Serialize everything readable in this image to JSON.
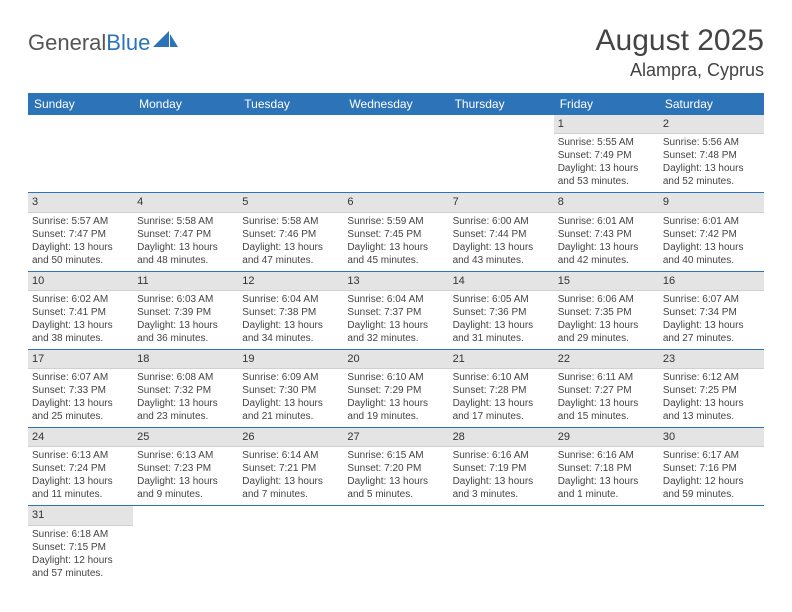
{
  "brand": {
    "general": "General",
    "blue": "Blue"
  },
  "title": "August 2025",
  "location": "Alampra, Cyprus",
  "colors": {
    "header_bg": "#2d73b8",
    "header_text": "#ffffff",
    "daynum_bg": "#e4e4e4",
    "row_border": "#2d73b8",
    "text": "#444444"
  },
  "weekdays": [
    "Sunday",
    "Monday",
    "Tuesday",
    "Wednesday",
    "Thursday",
    "Friday",
    "Saturday"
  ],
  "weeks": [
    [
      null,
      null,
      null,
      null,
      null,
      {
        "n": "1",
        "sunrise": "5:55 AM",
        "sunset": "7:49 PM",
        "daylight": "13 hours and 53 minutes."
      },
      {
        "n": "2",
        "sunrise": "5:56 AM",
        "sunset": "7:48 PM",
        "daylight": "13 hours and 52 minutes."
      }
    ],
    [
      {
        "n": "3",
        "sunrise": "5:57 AM",
        "sunset": "7:47 PM",
        "daylight": "13 hours and 50 minutes."
      },
      {
        "n": "4",
        "sunrise": "5:58 AM",
        "sunset": "7:47 PM",
        "daylight": "13 hours and 48 minutes."
      },
      {
        "n": "5",
        "sunrise": "5:58 AM",
        "sunset": "7:46 PM",
        "daylight": "13 hours and 47 minutes."
      },
      {
        "n": "6",
        "sunrise": "5:59 AM",
        "sunset": "7:45 PM",
        "daylight": "13 hours and 45 minutes."
      },
      {
        "n": "7",
        "sunrise": "6:00 AM",
        "sunset": "7:44 PM",
        "daylight": "13 hours and 43 minutes."
      },
      {
        "n": "8",
        "sunrise": "6:01 AM",
        "sunset": "7:43 PM",
        "daylight": "13 hours and 42 minutes."
      },
      {
        "n": "9",
        "sunrise": "6:01 AM",
        "sunset": "7:42 PM",
        "daylight": "13 hours and 40 minutes."
      }
    ],
    [
      {
        "n": "10",
        "sunrise": "6:02 AM",
        "sunset": "7:41 PM",
        "daylight": "13 hours and 38 minutes."
      },
      {
        "n": "11",
        "sunrise": "6:03 AM",
        "sunset": "7:39 PM",
        "daylight": "13 hours and 36 minutes."
      },
      {
        "n": "12",
        "sunrise": "6:04 AM",
        "sunset": "7:38 PM",
        "daylight": "13 hours and 34 minutes."
      },
      {
        "n": "13",
        "sunrise": "6:04 AM",
        "sunset": "7:37 PM",
        "daylight": "13 hours and 32 minutes."
      },
      {
        "n": "14",
        "sunrise": "6:05 AM",
        "sunset": "7:36 PM",
        "daylight": "13 hours and 31 minutes."
      },
      {
        "n": "15",
        "sunrise": "6:06 AM",
        "sunset": "7:35 PM",
        "daylight": "13 hours and 29 minutes."
      },
      {
        "n": "16",
        "sunrise": "6:07 AM",
        "sunset": "7:34 PM",
        "daylight": "13 hours and 27 minutes."
      }
    ],
    [
      {
        "n": "17",
        "sunrise": "6:07 AM",
        "sunset": "7:33 PM",
        "daylight": "13 hours and 25 minutes."
      },
      {
        "n": "18",
        "sunrise": "6:08 AM",
        "sunset": "7:32 PM",
        "daylight": "13 hours and 23 minutes."
      },
      {
        "n": "19",
        "sunrise": "6:09 AM",
        "sunset": "7:30 PM",
        "daylight": "13 hours and 21 minutes."
      },
      {
        "n": "20",
        "sunrise": "6:10 AM",
        "sunset": "7:29 PM",
        "daylight": "13 hours and 19 minutes."
      },
      {
        "n": "21",
        "sunrise": "6:10 AM",
        "sunset": "7:28 PM",
        "daylight": "13 hours and 17 minutes."
      },
      {
        "n": "22",
        "sunrise": "6:11 AM",
        "sunset": "7:27 PM",
        "daylight": "13 hours and 15 minutes."
      },
      {
        "n": "23",
        "sunrise": "6:12 AM",
        "sunset": "7:25 PM",
        "daylight": "13 hours and 13 minutes."
      }
    ],
    [
      {
        "n": "24",
        "sunrise": "6:13 AM",
        "sunset": "7:24 PM",
        "daylight": "13 hours and 11 minutes."
      },
      {
        "n": "25",
        "sunrise": "6:13 AM",
        "sunset": "7:23 PM",
        "daylight": "13 hours and 9 minutes."
      },
      {
        "n": "26",
        "sunrise": "6:14 AM",
        "sunset": "7:21 PM",
        "daylight": "13 hours and 7 minutes."
      },
      {
        "n": "27",
        "sunrise": "6:15 AM",
        "sunset": "7:20 PM",
        "daylight": "13 hours and 5 minutes."
      },
      {
        "n": "28",
        "sunrise": "6:16 AM",
        "sunset": "7:19 PM",
        "daylight": "13 hours and 3 minutes."
      },
      {
        "n": "29",
        "sunrise": "6:16 AM",
        "sunset": "7:18 PM",
        "daylight": "13 hours and 1 minute."
      },
      {
        "n": "30",
        "sunrise": "6:17 AM",
        "sunset": "7:16 PM",
        "daylight": "12 hours and 59 minutes."
      }
    ],
    [
      {
        "n": "31",
        "sunrise": "6:18 AM",
        "sunset": "7:15 PM",
        "daylight": "12 hours and 57 minutes."
      },
      null,
      null,
      null,
      null,
      null,
      null
    ]
  ],
  "labels": {
    "sunrise": "Sunrise: ",
    "sunset": "Sunset: ",
    "daylight": "Daylight: "
  }
}
